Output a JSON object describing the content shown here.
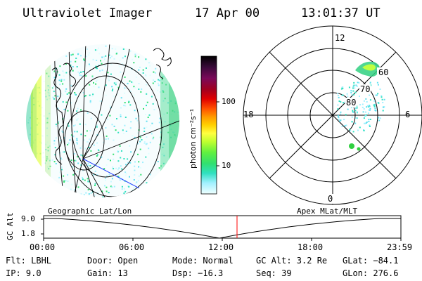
{
  "header": {
    "instrument": "Ultraviolet Imager",
    "date": "17 Apr 00",
    "time": "13:01:37 UT"
  },
  "colorbar": {
    "unit_label": "photon cm⁻²s⁻¹",
    "ticks": [
      "100",
      "10"
    ],
    "colors": [
      "#000000",
      "#3a0a3a",
      "#7a0a5a",
      "#a00020",
      "#e00000",
      "#ff5000",
      "#ff9a00",
      "#ffd000",
      "#ffff40",
      "#c0ff30",
      "#60f040",
      "#30e070",
      "#30e0c0",
      "#60e0f0",
      "#a0f0ff",
      "#e0ffff"
    ]
  },
  "polar_plot": {
    "mlt_labels": [
      "12",
      "18",
      "6",
      "0"
    ],
    "lat_labels": [
      "60",
      "70",
      "80"
    ]
  },
  "timeline": {
    "left_title": "Geographic Lat/Lon",
    "right_title": "Apex MLat/MLT",
    "y_axis_label": "GC Alt",
    "y_ticks": [
      "9.0",
      "1.8"
    ],
    "x_ticks": [
      "00:00",
      "06:00",
      "12:00",
      "18:00",
      "23:59"
    ],
    "marker_color": "#ff0000"
  },
  "info": {
    "filter": "Flt: LBHL",
    "ip": "IP:  9.0",
    "door": "Door: Open",
    "gain": "Gain: 13",
    "mode": "Mode: Normal",
    "dsp": "Dsp:  −16.3",
    "gc_alt": "GC Alt: 3.2 Re",
    "seq": "Seq: 39",
    "glat": "GLat: −84.1",
    "glon": "GLon: 276.6"
  }
}
